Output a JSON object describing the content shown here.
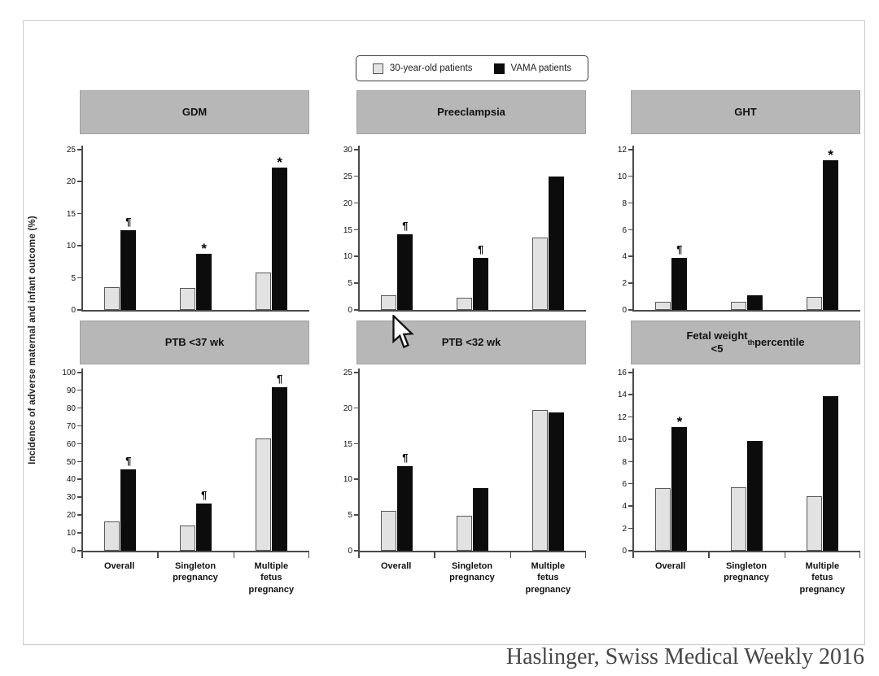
{
  "legend": {
    "items": [
      {
        "label": "30-year-old patients",
        "color": "#e2e2e2"
      },
      {
        "label": "VAMA patients",
        "color": "#0c0c0c"
      }
    ]
  },
  "y_axis_label": "Incidence of adverse maternal and infant outcome (%)",
  "citation": "Haslinger, Swiss Medical Weekly 2016",
  "colors": {
    "series_30yo": "#e2e2e2",
    "series_vama": "#0c0c0c",
    "panel_header": "#b7b7b7"
  },
  "chart_data": [
    {
      "type": "bar",
      "title": "GDM",
      "categories": [
        "Overall",
        "Singleton pregnancy",
        "Multiple fetus pregnancy"
      ],
      "ylim": [
        0,
        25
      ],
      "ystep": 5,
      "series": [
        {
          "name": "30-year-old patients",
          "values": [
            3.5,
            3.4,
            5.9
          ]
        },
        {
          "name": "VAMA patients",
          "values": [
            12.5,
            8.7,
            22.2
          ]
        }
      ],
      "annotations": [
        "¶",
        "*",
        "*"
      ],
      "show_x_labels": false,
      "legend_position": "top-center-shared",
      "grid": false
    },
    {
      "type": "bar",
      "title": "Preeclampsia",
      "categories": [
        "Overall",
        "Singleton pregnancy",
        "Multiple fetus pregnancy"
      ],
      "ylim": [
        0,
        30
      ],
      "ystep": 5,
      "series": [
        {
          "name": "30-year-old patients",
          "values": [
            2.8,
            2.3,
            13.6
          ]
        },
        {
          "name": "VAMA patients",
          "values": [
            14.2,
            9.8,
            25.0
          ]
        }
      ],
      "annotations": [
        "¶",
        "¶",
        ""
      ],
      "show_x_labels": false,
      "legend_position": "top-center-shared",
      "grid": false
    },
    {
      "type": "bar",
      "title": "GHT",
      "categories": [
        "Overall",
        "Singleton pregnancy",
        "Multiple fetus pregnancy"
      ],
      "ylim": [
        0,
        12
      ],
      "ystep": 2,
      "series": [
        {
          "name": "30-year-old patients",
          "values": [
            0.6,
            0.6,
            1.0
          ]
        },
        {
          "name": "VAMA patients",
          "values": [
            3.9,
            1.1,
            11.2
          ]
        }
      ],
      "annotations": [
        "¶",
        "",
        "*"
      ],
      "show_x_labels": false,
      "legend_position": "top-center-shared",
      "grid": false
    },
    {
      "type": "bar",
      "title": "PTB <37 wk",
      "categories": [
        "Overall",
        "Singleton pregnancy",
        "Multiple fetus pregnancy"
      ],
      "ylim": [
        0,
        100
      ],
      "ystep": 10,
      "series": [
        {
          "name": "30-year-old patients",
          "values": [
            16.5,
            14.0,
            63.0
          ]
        },
        {
          "name": "VAMA patients",
          "values": [
            45.5,
            26.5,
            92.0
          ]
        }
      ],
      "annotations": [
        "¶",
        "¶",
        "¶"
      ],
      "show_x_labels": true,
      "legend_position": "top-center-shared",
      "grid": false
    },
    {
      "type": "bar",
      "title": "PTB <32 wk",
      "categories": [
        "Overall",
        "Singleton pregnancy",
        "Multiple fetus pregnancy"
      ],
      "ylim": [
        0,
        25
      ],
      "ystep": 5,
      "series": [
        {
          "name": "30-year-old patients",
          "values": [
            5.6,
            4.9,
            19.8
          ]
        },
        {
          "name": "VAMA patients",
          "values": [
            11.9,
            8.8,
            19.4
          ]
        }
      ],
      "annotations": [
        "¶",
        "",
        ""
      ],
      "show_x_labels": true,
      "legend_position": "top-center-shared",
      "grid": false
    },
    {
      "type": "bar",
      "title": "Fetal weight\n<5th percentile",
      "categories": [
        "Overall",
        "Singleton pregnancy",
        "Multiple fetus pregnancy"
      ],
      "ylim": [
        0,
        16
      ],
      "ystep": 2,
      "series": [
        {
          "name": "30-year-old patients",
          "values": [
            5.6,
            5.7,
            4.9
          ]
        },
        {
          "name": "VAMA patients",
          "values": [
            11.1,
            9.9,
            13.9
          ]
        }
      ],
      "annotations": [
        "*",
        "",
        ""
      ],
      "show_x_labels": true,
      "legend_position": "top-center-shared",
      "grid": false
    }
  ]
}
